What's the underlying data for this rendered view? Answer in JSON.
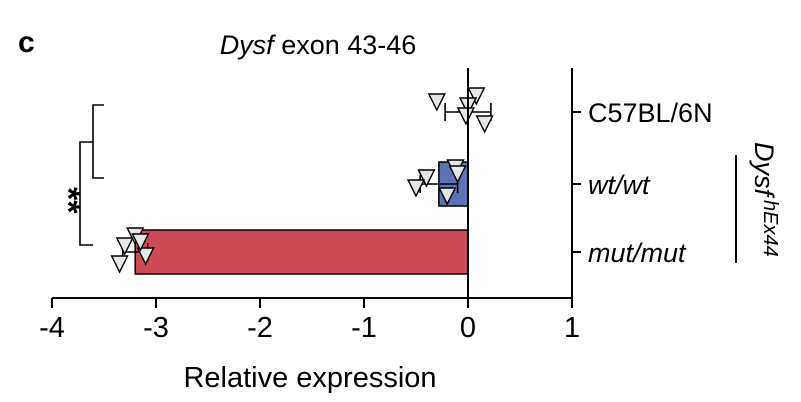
{
  "panel_letter": "c",
  "chart_data": {
    "type": "bar",
    "orientation": "horizontal",
    "title_italic": "Dysf",
    "title_rest": " exon 43-46",
    "xlabel": "Relative expression",
    "xlim": [
      -4,
      1
    ],
    "xticks": [
      -4,
      -3,
      -2,
      -1,
      0,
      1
    ],
    "xtick_labels": [
      "-4",
      "-3",
      "-2",
      "-1",
      "0",
      "1"
    ],
    "categories": [
      "C57BL/6N",
      "wt/wt",
      "mut/mut"
    ],
    "category_italic": [
      false,
      true,
      true
    ],
    "values": [
      0.0,
      -0.28,
      -3.2
    ],
    "errors": [
      0.22,
      0.18,
      0.12
    ],
    "bar_colors": [
      "#ffffff",
      "#5d72b7",
      "#cd4b57"
    ],
    "points": [
      [
        0.08,
        0.0,
        -0.02,
        0.16,
        -0.3
      ],
      [
        -0.12,
        -0.4,
        -0.5,
        -0.2,
        -0.1
      ],
      [
        -3.2,
        -3.3,
        -3.1,
        -3.35,
        -3.15
      ]
    ],
    "group_label_base": "Dysf",
    "group_label_sup": "hEx44",
    "significance": "**"
  }
}
